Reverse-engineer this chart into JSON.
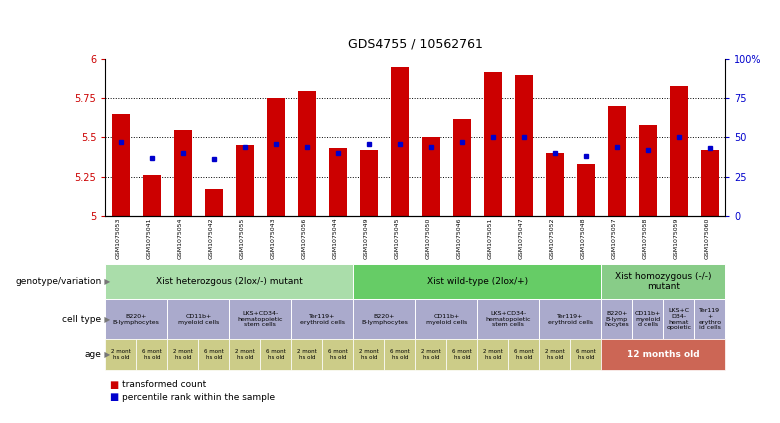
{
  "title": "GDS4755 / 10562761",
  "samples": [
    "GSM1075053",
    "GSM1075041",
    "GSM1075054",
    "GSM1075042",
    "GSM1075055",
    "GSM1075043",
    "GSM1075056",
    "GSM1075044",
    "GSM1075049",
    "GSM1075045",
    "GSM1075050",
    "GSM1075046",
    "GSM1075051",
    "GSM1075047",
    "GSM1075052",
    "GSM1075048",
    "GSM1075057",
    "GSM1075058",
    "GSM1075059",
    "GSM1075060"
  ],
  "bar_values": [
    5.65,
    5.26,
    5.55,
    5.17,
    5.45,
    5.75,
    5.8,
    5.43,
    5.42,
    5.95,
    5.5,
    5.62,
    5.92,
    5.9,
    5.4,
    5.33,
    5.7,
    5.58,
    5.83,
    5.42
  ],
  "dot_values": [
    5.47,
    5.37,
    5.4,
    5.36,
    5.44,
    5.46,
    5.44,
    5.4,
    5.46,
    5.46,
    5.44,
    5.47,
    5.5,
    5.5,
    5.4,
    5.38,
    5.44,
    5.42,
    5.5,
    5.43
  ],
  "ymin": 5.0,
  "ymax": 6.0,
  "yticks": [
    5.0,
    5.25,
    5.5,
    5.75,
    6.0
  ],
  "ytick_labels": [
    "5",
    "5.25",
    "5.5",
    "5.75",
    "6"
  ],
  "right_yticks": [
    0,
    25,
    50,
    75,
    100
  ],
  "right_ytick_labels": [
    "0",
    "25",
    "50",
    "75",
    "100%"
  ],
  "bar_color": "#cc0000",
  "dot_color": "#0000cc",
  "bg_color": "#ffffff",
  "genotype_groups": [
    {
      "label": "Xist heterozgous (2lox/-) mutant",
      "start": 0,
      "end": 8,
      "color": "#aaddaa"
    },
    {
      "label": "Xist wild-type (2lox/+)",
      "start": 8,
      "end": 16,
      "color": "#66cc66"
    },
    {
      "label": "Xist homozygous (-/-)\nmutant",
      "start": 16,
      "end": 20,
      "color": "#88cc88"
    }
  ],
  "cell_type_groups": [
    {
      "label": "B220+\nB-lymphocytes",
      "start": 0,
      "end": 2
    },
    {
      "label": "CD11b+\nmyeloid cells",
      "start": 2,
      "end": 4
    },
    {
      "label": "LKS+CD34-\nhematopoietic\nstem cells",
      "start": 4,
      "end": 6
    },
    {
      "label": "Ter119+\nerythroid cells",
      "start": 6,
      "end": 8
    },
    {
      "label": "B220+\nB-lymphocytes",
      "start": 8,
      "end": 10
    },
    {
      "label": "CD11b+\nmyeloid cells",
      "start": 10,
      "end": 12
    },
    {
      "label": "LKS+CD34-\nhematopoietic\nstem cells",
      "start": 12,
      "end": 14
    },
    {
      "label": "Ter119+\nerythroid cells",
      "start": 14,
      "end": 16
    },
    {
      "label": "B220+\nB-lymp\nhocytes",
      "start": 16,
      "end": 17
    },
    {
      "label": "CD11b+\nmyeloid\nd cells",
      "start": 17,
      "end": 18
    },
    {
      "label": "LKS+C\nD34-\nhemat\nopoietic",
      "start": 18,
      "end": 19
    },
    {
      "label": "Ter119\n+\nerythro\nid cells",
      "start": 19,
      "end": 20
    }
  ],
  "age_groups_regular": [
    {
      "label": "2 mont\nhs old",
      "start": 0,
      "end": 1
    },
    {
      "label": "6 mont\nhs old",
      "start": 1,
      "end": 2
    },
    {
      "label": "2 mont\nhs old",
      "start": 2,
      "end": 3
    },
    {
      "label": "6 mont\nhs old",
      "start": 3,
      "end": 4
    },
    {
      "label": "2 mont\nhs old",
      "start": 4,
      "end": 5
    },
    {
      "label": "6 mont\nhs old",
      "start": 5,
      "end": 6
    },
    {
      "label": "2 mont\nhs old",
      "start": 6,
      "end": 7
    },
    {
      "label": "6 mont\nhs old",
      "start": 7,
      "end": 8
    },
    {
      "label": "2 mont\nhs old",
      "start": 8,
      "end": 9
    },
    {
      "label": "6 mont\nhs old",
      "start": 9,
      "end": 10
    },
    {
      "label": "2 mont\nhs old",
      "start": 10,
      "end": 11
    },
    {
      "label": "6 mont\nhs old",
      "start": 11,
      "end": 12
    },
    {
      "label": "2 mont\nhs old",
      "start": 12,
      "end": 13
    },
    {
      "label": "6 mont\nhs old",
      "start": 13,
      "end": 14
    },
    {
      "label": "2 mont\nhs old",
      "start": 14,
      "end": 15
    },
    {
      "label": "6 mont\nhs old",
      "start": 15,
      "end": 16
    }
  ],
  "age_special": {
    "label": "12 months old",
    "start": 16,
    "end": 20,
    "color": "#cc6655"
  },
  "age_regular_color": "#cccc88",
  "cell_type_color": "#aaaacc",
  "legend_items": [
    {
      "label": "transformed count",
      "color": "#cc0000"
    },
    {
      "label": "percentile rank within the sample",
      "color": "#0000cc"
    }
  ]
}
